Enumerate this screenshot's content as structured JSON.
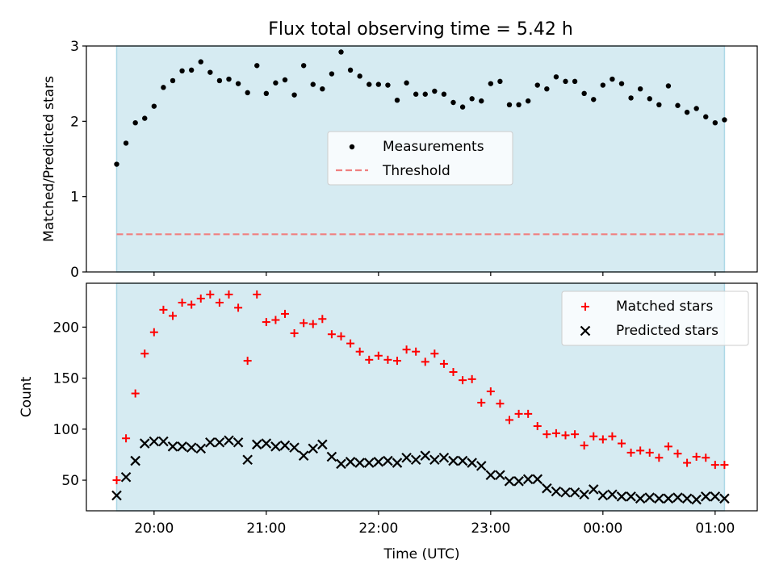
{
  "title": "Flux total observing time = 5.42 h",
  "colors": {
    "observing_band": "#add8e6",
    "measurements": "#000000",
    "threshold": "#f08080",
    "matched": "#ff0000",
    "predicted": "#000000"
  },
  "chart_data": [
    {
      "type": "scatter",
      "panel": "top",
      "ylabel": "Matched/Predicted stars",
      "ylim": [
        0,
        3
      ],
      "yticks": [
        "0",
        "1",
        "2",
        "3"
      ],
      "legend": {
        "placement": "center",
        "entries": [
          "Measurements",
          "Threshold"
        ]
      },
      "observing_window": [
        "19:40",
        "25:05"
      ],
      "threshold": 0.5,
      "series": [
        {
          "name": "Measurements",
          "x": [
            "19:40",
            "19:45",
            "19:50",
            "19:55",
            "20:00",
            "20:05",
            "20:10",
            "20:15",
            "20:20",
            "20:25",
            "20:30",
            "20:35",
            "20:40",
            "20:45",
            "20:50",
            "20:55",
            "21:00",
            "21:05",
            "21:10",
            "21:15",
            "21:20",
            "21:25",
            "21:30",
            "21:35",
            "21:40",
            "21:45",
            "21:50",
            "21:55",
            "22:00",
            "22:05",
            "22:10",
            "22:15",
            "22:20",
            "22:25",
            "22:30",
            "22:35",
            "22:40",
            "22:45",
            "22:50",
            "22:55",
            "23:00",
            "23:05",
            "23:10",
            "23:15",
            "23:20",
            "23:25",
            "23:30",
            "23:35",
            "23:40",
            "23:45",
            "23:50",
            "23:55",
            "24:00",
            "24:05",
            "24:10",
            "24:15",
            "24:20",
            "24:25",
            "24:30",
            "24:35",
            "24:40",
            "24:45",
            "24:50",
            "24:55",
            "25:00",
            "25:05"
          ],
          "y": [
            1.43,
            1.71,
            1.98,
            2.04,
            2.2,
            2.45,
            2.54,
            2.67,
            2.68,
            2.79,
            2.65,
            2.54,
            2.56,
            2.5,
            2.38,
            2.74,
            2.37,
            2.51,
            2.55,
            2.35,
            2.74,
            2.49,
            2.43,
            2.63,
            2.92,
            2.68,
            2.6,
            2.49,
            2.49,
            2.48,
            2.28,
            2.51,
            2.36,
            2.36,
            2.4,
            2.36,
            2.25,
            2.19,
            2.3,
            2.27,
            2.5,
            2.53,
            2.22,
            2.22,
            2.27,
            2.48,
            2.43,
            2.59,
            2.53,
            2.53,
            2.37,
            2.29,
            2.48,
            2.56,
            2.5,
            2.31,
            2.43,
            2.3,
            2.22,
            2.47,
            2.21,
            2.12,
            2.17,
            2.06,
            1.98,
            2.02
          ]
        }
      ]
    },
    {
      "type": "scatter",
      "panel": "bottom",
      "xlabel": "Time (UTC)",
      "ylabel": "Count",
      "ylim": [
        20,
        243
      ],
      "yticks": [
        "50",
        "100",
        "150",
        "200"
      ],
      "xticks": [
        "20:00",
        "21:00",
        "22:00",
        "23:00",
        "00:00",
        "01:00"
      ],
      "legend": {
        "placement": "top-right",
        "entries": [
          "Matched stars",
          "Predicted stars"
        ]
      },
      "series": [
        {
          "name": "Matched stars",
          "x": [
            "19:40",
            "19:45",
            "19:50",
            "19:55",
            "20:00",
            "20:05",
            "20:10",
            "20:15",
            "20:20",
            "20:25",
            "20:30",
            "20:35",
            "20:40",
            "20:45",
            "20:50",
            "20:55",
            "21:00",
            "21:05",
            "21:10",
            "21:15",
            "21:20",
            "21:25",
            "21:30",
            "21:35",
            "21:40",
            "21:45",
            "21:50",
            "21:55",
            "22:00",
            "22:05",
            "22:10",
            "22:15",
            "22:20",
            "22:25",
            "22:30",
            "22:35",
            "22:40",
            "22:45",
            "22:50",
            "22:55",
            "23:00",
            "23:05",
            "23:10",
            "23:15",
            "23:20",
            "23:25",
            "23:30",
            "23:35",
            "23:40",
            "23:45",
            "23:50",
            "23:55",
            "24:00",
            "24:05",
            "24:10",
            "24:15",
            "24:20",
            "24:25",
            "24:30",
            "24:35",
            "24:40",
            "24:45",
            "24:50",
            "24:55",
            "25:00",
            "25:05"
          ],
          "y": [
            50,
            91,
            135,
            174,
            195,
            217,
            211,
            224,
            222,
            228,
            232,
            224,
            232,
            219,
            167,
            232,
            205,
            207,
            213,
            194,
            204,
            203,
            208,
            193,
            191,
            184,
            176,
            168,
            172,
            168,
            167,
            178,
            176,
            166,
            174,
            164,
            156,
            148,
            149,
            126,
            137,
            125,
            109,
            115,
            115,
            103,
            95,
            96,
            94,
            95,
            84,
            93,
            90,
            93,
            86,
            77,
            79,
            77,
            72,
            83,
            76,
            67,
            73,
            72,
            65,
            65
          ]
        },
        {
          "name": "Predicted stars",
          "x": [
            "19:40",
            "19:45",
            "19:50",
            "19:55",
            "20:00",
            "20:05",
            "20:10",
            "20:15",
            "20:20",
            "20:25",
            "20:30",
            "20:35",
            "20:40",
            "20:45",
            "20:50",
            "20:55",
            "21:00",
            "21:05",
            "21:10",
            "21:15",
            "21:20",
            "21:25",
            "21:30",
            "21:35",
            "21:40",
            "21:45",
            "21:50",
            "21:55",
            "22:00",
            "22:05",
            "22:10",
            "22:15",
            "22:20",
            "22:25",
            "22:30",
            "22:35",
            "22:40",
            "22:45",
            "22:50",
            "22:55",
            "23:00",
            "23:05",
            "23:10",
            "23:15",
            "23:20",
            "23:25",
            "23:30",
            "23:35",
            "23:40",
            "23:45",
            "23:50",
            "23:55",
            "24:00",
            "24:05",
            "24:10",
            "24:15",
            "24:20",
            "24:25",
            "24:30",
            "24:35",
            "24:40",
            "24:45",
            "24:50",
            "24:55",
            "25:00",
            "25:05"
          ],
          "y": [
            35,
            53,
            69,
            86,
            88,
            88,
            83,
            83,
            82,
            81,
            87,
            87,
            89,
            87,
            70,
            85,
            86,
            83,
            84,
            82,
            74,
            81,
            85,
            73,
            66,
            68,
            67,
            67,
            68,
            69,
            67,
            72,
            70,
            74,
            70,
            72,
            69,
            69,
            67,
            64,
            55,
            55,
            49,
            49,
            51,
            51,
            42,
            39,
            38,
            38,
            36,
            41,
            35,
            36,
            34,
            34,
            32,
            33,
            32,
            32,
            33,
            32,
            31,
            34,
            34,
            32
          ]
        }
      ]
    }
  ]
}
